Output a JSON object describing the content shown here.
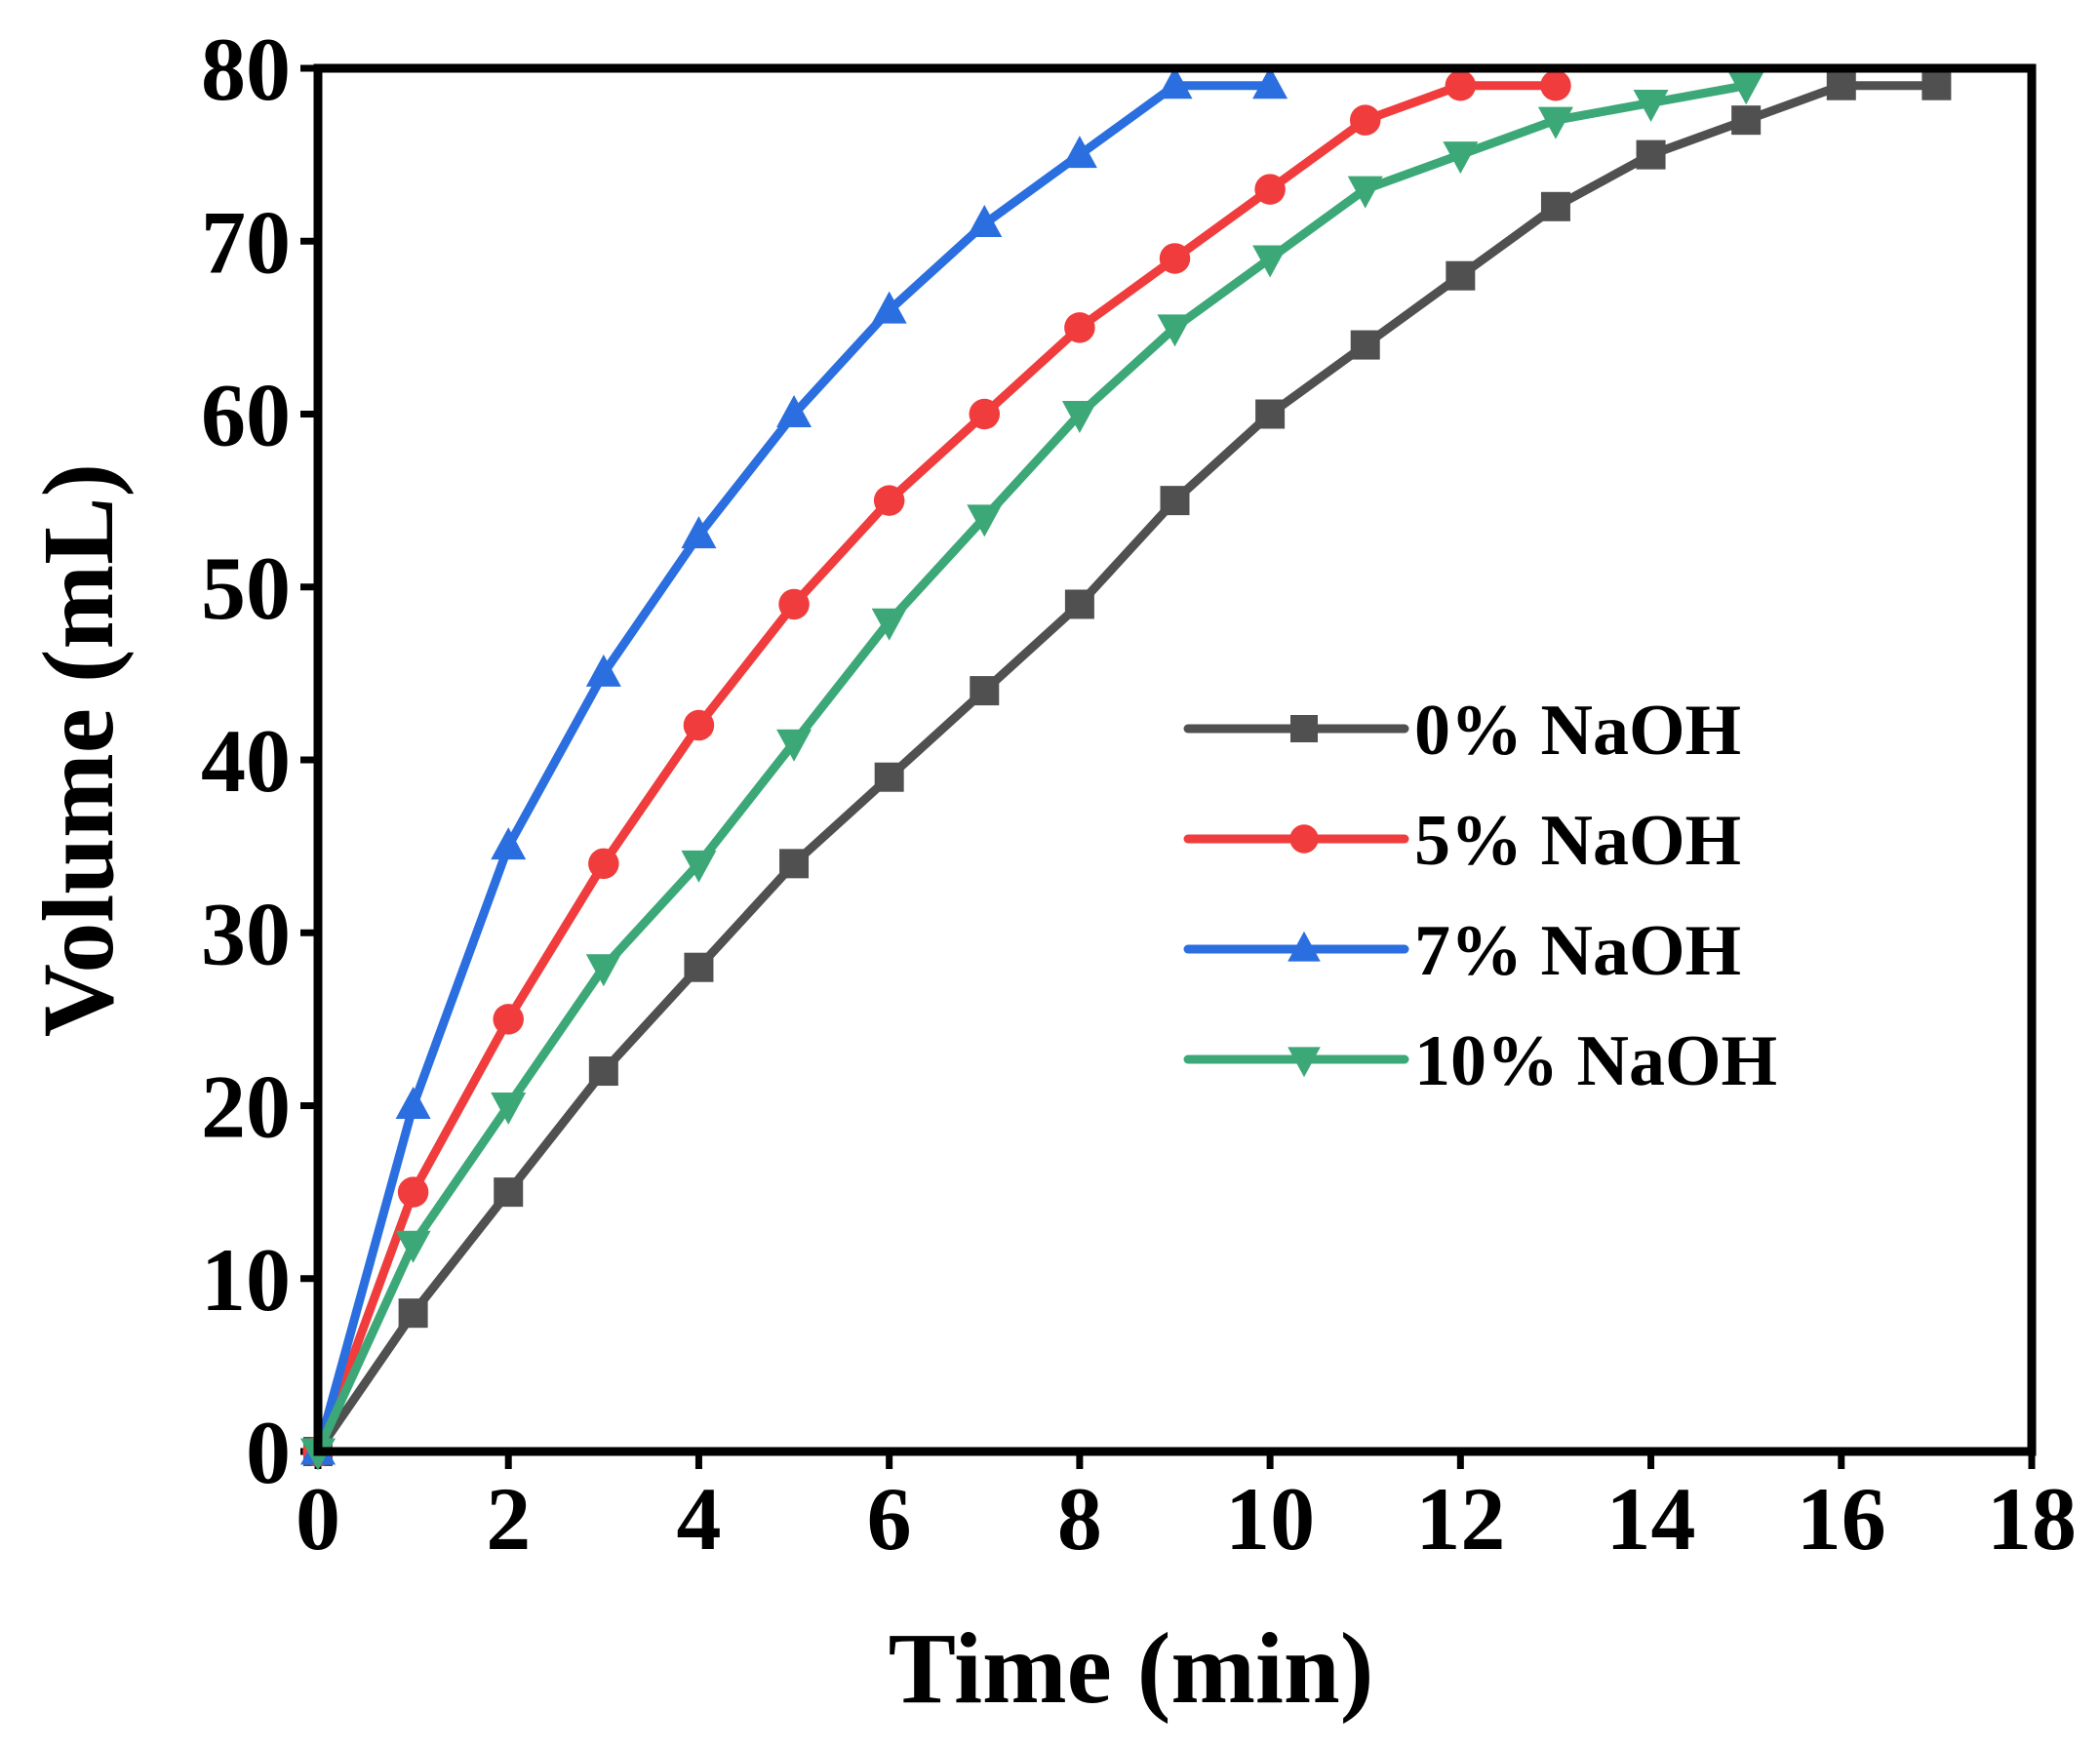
{
  "chart_data": {
    "type": "line",
    "title": "",
    "xlabel": "Time (min)",
    "ylabel": "Volume (mL)",
    "xlim": [
      0,
      18
    ],
    "ylim": [
      0,
      80
    ],
    "xticks": [
      0,
      2,
      4,
      6,
      8,
      10,
      12,
      14,
      16,
      18
    ],
    "yticks": [
      0,
      10,
      20,
      30,
      40,
      50,
      60,
      70,
      80
    ],
    "grid": false,
    "legend_position": "center-right",
    "series": [
      {
        "name": "0% NaOH",
        "color": "#505050",
        "marker": "square",
        "x": [
          0,
          1,
          2,
          3,
          4,
          5,
          6,
          7,
          8,
          9,
          10,
          11,
          12,
          13,
          14,
          15,
          16,
          17
        ],
        "y": [
          0,
          8,
          15,
          22,
          28,
          34,
          39,
          44,
          49,
          55,
          60,
          64,
          68,
          72,
          75,
          77,
          79,
          79
        ]
      },
      {
        "name": "5% NaOH",
        "color": "#f03c3c",
        "marker": "circle",
        "x": [
          0,
          1,
          2,
          3,
          4,
          5,
          6,
          7,
          8,
          9,
          10,
          11,
          12,
          13
        ],
        "y": [
          0,
          15,
          25,
          34,
          42,
          49,
          55,
          60,
          65,
          69,
          73,
          77,
          79,
          79
        ]
      },
      {
        "name": "7% NaOH",
        "color": "#2a6ee0",
        "marker": "triangle-up",
        "x": [
          0,
          1,
          2,
          3,
          4,
          5,
          6,
          7,
          8,
          9,
          10
        ],
        "y": [
          0,
          20,
          35,
          45,
          53,
          60,
          66,
          71,
          75,
          79,
          79
        ]
      },
      {
        "name": "10% NaOH",
        "color": "#3ca878",
        "marker": "triangle-down",
        "x": [
          0,
          1,
          2,
          3,
          4,
          5,
          6,
          7,
          8,
          9,
          10,
          11,
          12,
          13,
          14,
          15
        ],
        "y": [
          0,
          12,
          20,
          28,
          34,
          41,
          48,
          54,
          60,
          65,
          69,
          73,
          75,
          77,
          78,
          79
        ]
      }
    ]
  }
}
